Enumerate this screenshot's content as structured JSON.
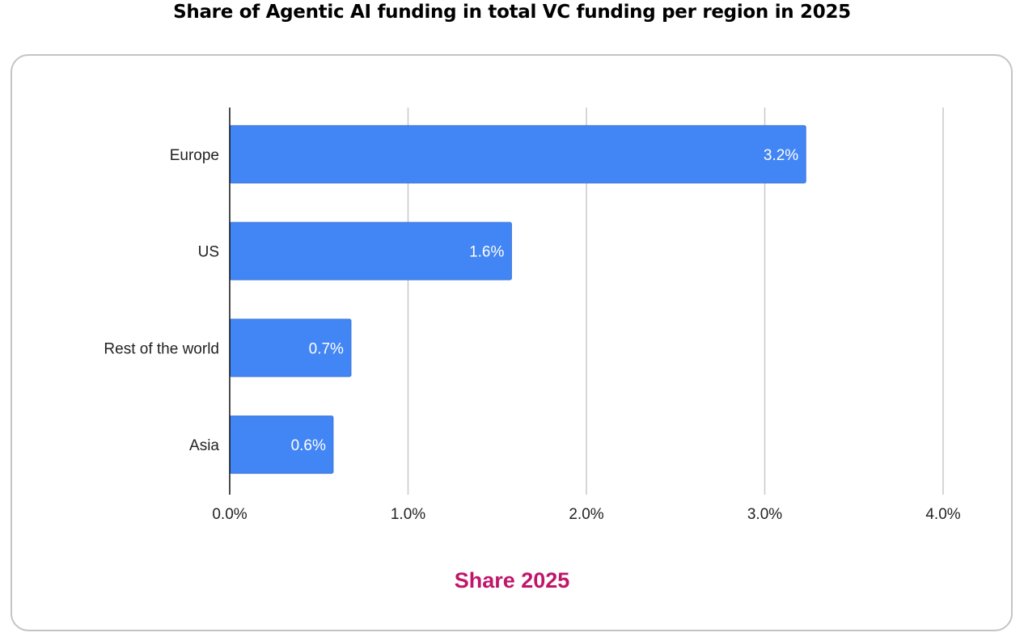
{
  "title": "Share of Agentic AI funding in total VC funding per region in 2025",
  "chart_data": {
    "type": "bar",
    "orientation": "horizontal",
    "title": "Share of Agentic AI funding in total VC funding per region in 2025",
    "categories": [
      "Europe",
      "US",
      "Rest of the world",
      "Asia"
    ],
    "series": [
      {
        "name": "Share 2025",
        "values": [
          3.23,
          1.58,
          0.68,
          0.58
        ],
        "data_labels": [
          "3.2%",
          "1.6%",
          "0.7%",
          "0.6%"
        ],
        "color": "#4285f4"
      }
    ],
    "xlim": [
      0,
      4
    ],
    "x_ticks": [
      "0.0%",
      "1.0%",
      "2.0%",
      "3.0%",
      "4.0%"
    ],
    "grid": "vertical",
    "legend": "bottom",
    "legend_label": "Share 2025",
    "legend_color": "#c0166a",
    "xlabel": "",
    "ylabel": ""
  }
}
